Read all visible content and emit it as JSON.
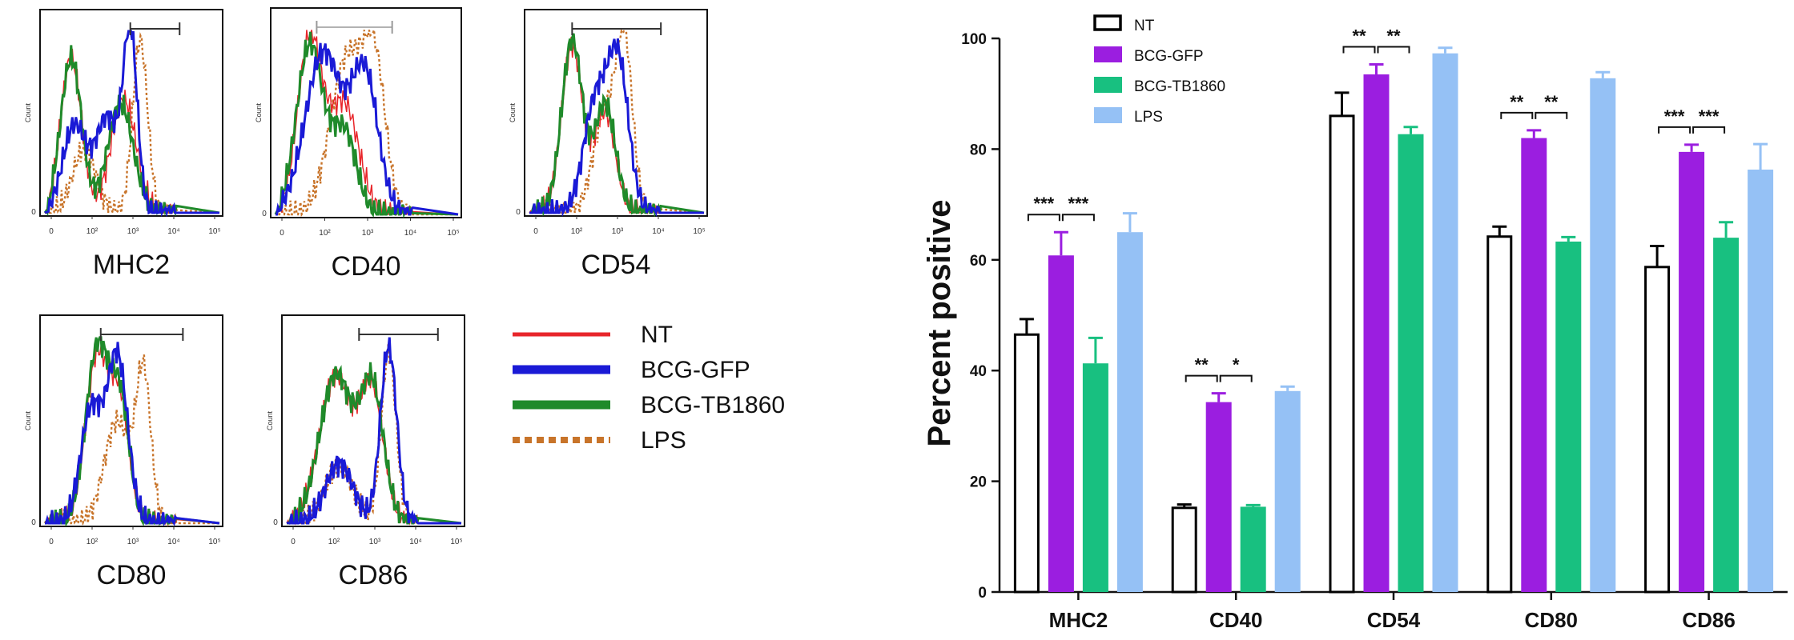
{
  "histograms": {
    "panels": [
      {
        "title": "MHC2",
        "gate": [
          2.6,
          4.1
        ]
      },
      {
        "title": "CD40",
        "gate": [
          1.2,
          3.4
        ]
      },
      {
        "title": "CD54",
        "gate": [
          1.3,
          4.0
        ]
      },
      {
        "title": "CD80",
        "gate": [
          1.7,
          4.2
        ]
      },
      {
        "title": "CD86",
        "gate": [
          2.2,
          4.6
        ]
      }
    ],
    "x_ticks": [
      "0",
      "10²",
      "10³",
      "10⁴",
      "10⁵"
    ],
    "y_label": "Count",
    "y_zero": "0",
    "legend": [
      {
        "label": "NT",
        "color": "#e8262b",
        "style": "solid-thin"
      },
      {
        "label": "BCG-GFP",
        "color": "#1a1ad6",
        "style": "solid"
      },
      {
        "label": "BCG-TB1860",
        "color": "#1f8a2a",
        "style": "solid"
      },
      {
        "label": "LPS",
        "color": "#c8742a",
        "style": "dotted"
      }
    ]
  },
  "chart_data": {
    "type": "bar",
    "categories": [
      "MHC2",
      "CD40",
      "CD54",
      "CD80",
      "CD86"
    ],
    "ylabel": "Percent positive",
    "ylim": [
      0,
      100
    ],
    "yticks": [
      "0",
      "20",
      "40",
      "60",
      "80",
      "100"
    ],
    "legend_position": "top-left",
    "series": [
      {
        "name": "NT",
        "color": "#ffffff",
        "stroke": "#000000",
        "values": [
          46.5,
          15.2,
          86.0,
          64.2,
          58.7
        ],
        "errors": [
          2.8,
          0.6,
          4.2,
          1.8,
          3.8
        ]
      },
      {
        "name": "BCG-GFP",
        "color": "#9b1ee0",
        "stroke": "#9b1ee0",
        "values": [
          60.8,
          34.3,
          93.5,
          82.0,
          79.5
        ],
        "errors": [
          4.2,
          1.6,
          1.8,
          1.4,
          1.3
        ]
      },
      {
        "name": "BCG-TB1860",
        "color": "#18c080",
        "stroke": "#18c080",
        "values": [
          41.3,
          15.4,
          82.7,
          63.3,
          64.0
        ],
        "errors": [
          4.6,
          0.3,
          1.3,
          0.8,
          2.8
        ]
      },
      {
        "name": "LPS",
        "color": "#95c1f5",
        "stroke": "#95c1f5",
        "values": [
          65.0,
          36.3,
          97.3,
          92.8,
          76.3
        ],
        "errors": [
          3.4,
          0.8,
          1.0,
          1.1,
          4.6
        ]
      }
    ],
    "significance": [
      {
        "category": 0,
        "from": 0,
        "to": 1,
        "label": "***"
      },
      {
        "category": 0,
        "from": 1,
        "to": 2,
        "label": "***"
      },
      {
        "category": 1,
        "from": 0,
        "to": 1,
        "label": "**"
      },
      {
        "category": 1,
        "from": 1,
        "to": 2,
        "label": "*"
      },
      {
        "category": 2,
        "from": 0,
        "to": 1,
        "label": "**"
      },
      {
        "category": 2,
        "from": 1,
        "to": 2,
        "label": "**"
      },
      {
        "category": 3,
        "from": 0,
        "to": 1,
        "label": "**"
      },
      {
        "category": 3,
        "from": 1,
        "to": 2,
        "label": "**"
      },
      {
        "category": 4,
        "from": 0,
        "to": 1,
        "label": "***"
      },
      {
        "category": 4,
        "from": 1,
        "to": 2,
        "label": "***"
      }
    ]
  }
}
